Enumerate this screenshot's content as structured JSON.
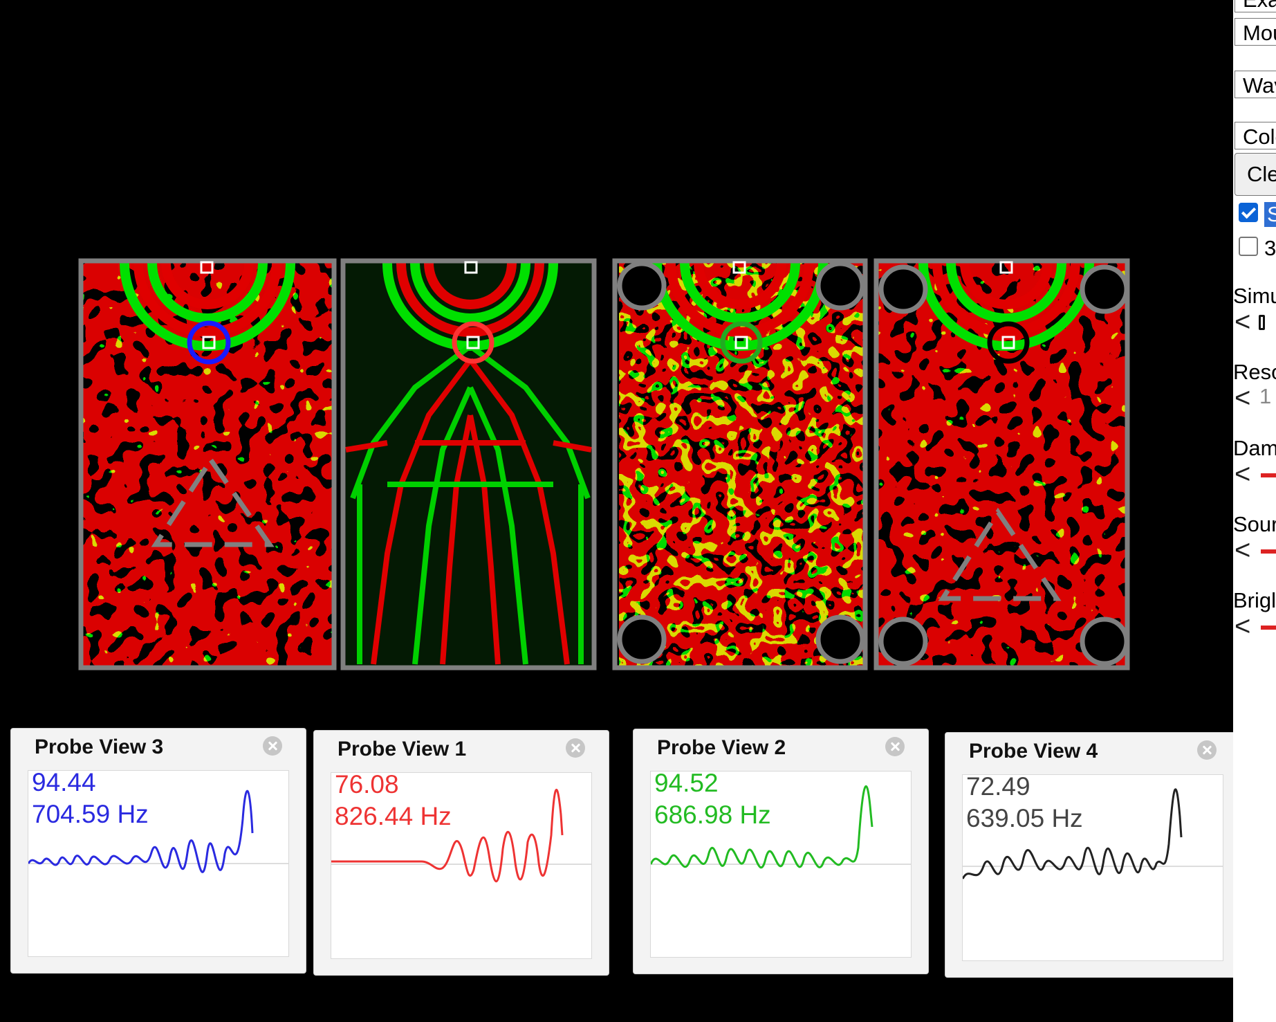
{
  "panel": {
    "dropdowns": [
      "Exa",
      "Mou",
      "Wav",
      "Colo"
    ],
    "clear_button": "Cle",
    "checkbox_stopped": {
      "label": "S",
      "checked": true
    },
    "checkbox_3d": {
      "label": "3",
      "checked": false
    },
    "sliders": [
      {
        "label": "Simu",
        "value_text": "",
        "arrow": "<"
      },
      {
        "label": "Reso",
        "value_text": "1",
        "arrow": "<"
      },
      {
        "label": "Dam",
        "value_text": "",
        "arrow": "<"
      },
      {
        "label": "Sour",
        "value_text": "",
        "arrow": "<"
      },
      {
        "label": "Brigl",
        "value_text": "",
        "arrow": "<"
      }
    ]
  },
  "simulation": {
    "colors": {
      "positive": "#00e000",
      "negative": "#e00000",
      "wall": "#808080"
    },
    "panels": [
      {
        "id": "sim-panel-1",
        "probe_color": "#1a1aff",
        "obstacle": "triangle"
      },
      {
        "id": "sim-panel-2",
        "probe_color": "#ff3333",
        "obstacle": "none"
      },
      {
        "id": "sim-panel-3",
        "probe_color": "#22aa22",
        "obstacle": "corner-circles"
      },
      {
        "id": "sim-panel-4",
        "probe_color": "#000000",
        "obstacle": "triangle-and-corner-circles"
      }
    ]
  },
  "probes": [
    {
      "title": "Probe View 3",
      "value": "94.44",
      "frequency": "704.59 Hz",
      "color": "#2a2ae0"
    },
    {
      "title": "Probe View 1",
      "value": "76.08",
      "frequency": "826.44 Hz",
      "color": "#ee3333"
    },
    {
      "title": "Probe View 2",
      "value": "94.52",
      "frequency": "686.98 Hz",
      "color": "#22bb22"
    },
    {
      "title": "Probe View 4",
      "value": "72.49",
      "frequency": "639.05 Hz",
      "color": "#222222"
    }
  ]
}
